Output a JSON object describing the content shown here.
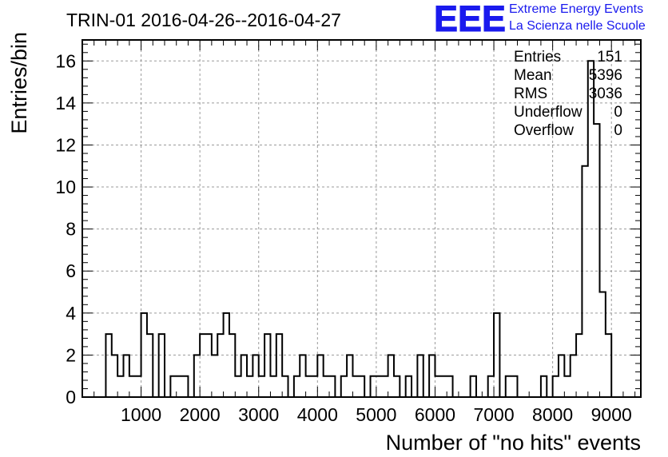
{
  "chart_data": {
    "type": "histogram",
    "title": "TRIN-01 2016-04-26--2016-04-27",
    "xlabel": "Number of \"no hits\" events",
    "ylabel": "Entries/bin",
    "xlim": [
      0,
      9500
    ],
    "ylim": [
      0,
      17
    ],
    "x_ticks": [
      1000,
      2000,
      3000,
      4000,
      5000,
      6000,
      7000,
      8000,
      9000
    ],
    "y_ticks": [
      0,
      2,
      4,
      6,
      8,
      10,
      12,
      14,
      16
    ],
    "grid": true,
    "bin_width": 100,
    "bins": [
      [
        400,
        3
      ],
      [
        500,
        2
      ],
      [
        600,
        1
      ],
      [
        700,
        2
      ],
      [
        800,
        1
      ],
      [
        900,
        1
      ],
      [
        1000,
        4
      ],
      [
        1100,
        3
      ],
      [
        1200,
        0
      ],
      [
        1300,
        3
      ],
      [
        1400,
        0
      ],
      [
        1500,
        1
      ],
      [
        1600,
        1
      ],
      [
        1700,
        1
      ],
      [
        1900,
        2
      ],
      [
        2000,
        3
      ],
      [
        2100,
        3
      ],
      [
        2200,
        2
      ],
      [
        2300,
        3
      ],
      [
        2400,
        4
      ],
      [
        2500,
        3
      ],
      [
        2600,
        1
      ],
      [
        2700,
        2
      ],
      [
        2800,
        1
      ],
      [
        2900,
        2
      ],
      [
        3000,
        1
      ],
      [
        3100,
        3
      ],
      [
        3200,
        1
      ],
      [
        3300,
        3
      ],
      [
        3400,
        1
      ],
      [
        3600,
        1
      ],
      [
        3700,
        2
      ],
      [
        3800,
        1
      ],
      [
        3900,
        1
      ],
      [
        4000,
        2
      ],
      [
        4100,
        1
      ],
      [
        4200,
        1
      ],
      [
        4300,
        0
      ],
      [
        4400,
        1
      ],
      [
        4500,
        2
      ],
      [
        4600,
        1
      ],
      [
        4700,
        1
      ],
      [
        4900,
        1
      ],
      [
        5000,
        1
      ],
      [
        5100,
        1
      ],
      [
        5200,
        2
      ],
      [
        5300,
        1
      ],
      [
        5400,
        0
      ],
      [
        5500,
        1
      ],
      [
        5600,
        0
      ],
      [
        5700,
        2
      ],
      [
        5800,
        0
      ],
      [
        5900,
        2
      ],
      [
        6000,
        1
      ],
      [
        6100,
        1
      ],
      [
        6200,
        1
      ],
      [
        6600,
        1
      ],
      [
        6700,
        0
      ],
      [
        6800,
        0
      ],
      [
        6900,
        1
      ],
      [
        7000,
        4
      ],
      [
        7100,
        0
      ],
      [
        7200,
        1
      ],
      [
        7300,
        1
      ],
      [
        7400,
        0
      ],
      [
        7500,
        0
      ],
      [
        7600,
        0
      ],
      [
        7700,
        0
      ],
      [
        7800,
        1
      ],
      [
        7900,
        0
      ],
      [
        8000,
        1
      ],
      [
        8100,
        2
      ],
      [
        8200,
        1
      ],
      [
        8300,
        2
      ],
      [
        8400,
        3
      ],
      [
        8500,
        11
      ],
      [
        8600,
        16
      ],
      [
        8700,
        13
      ],
      [
        8800,
        5
      ],
      [
        8900,
        3
      ]
    ],
    "stats": [
      {
        "label": "Entries",
        "value": "151"
      },
      {
        "label": "Mean",
        "value": "5396"
      },
      {
        "label": "RMS",
        "value": "3036"
      },
      {
        "label": "Underflow",
        "value": "0"
      },
      {
        "label": "Overflow",
        "value": "0"
      }
    ]
  },
  "logo": {
    "mark": "EEE",
    "line1": "Extreme Energy Events",
    "line2": "La Scienza nelle Scuole"
  }
}
